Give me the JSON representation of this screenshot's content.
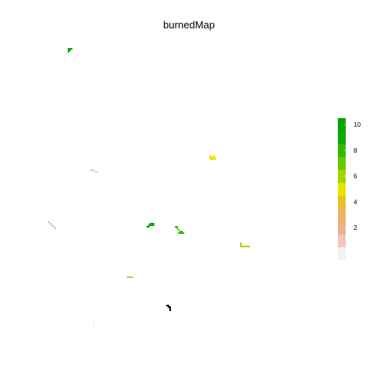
{
  "chart_data": {
    "type": "heatmap",
    "title": "burnedMap",
    "xlabel": "",
    "ylabel": "",
    "value_range": [
      0,
      11
    ],
    "legend": {
      "placement": "right",
      "ticks": [
        2,
        4,
        6,
        8,
        10
      ],
      "colors": [
        "#f2f2f2",
        "#efc7bb",
        "#ebb18b",
        "#e8b564",
        "#e4c12b",
        "#e6e600",
        "#a6d600",
        "#6ac600",
        "#33b800",
        "#12a800",
        "#00a600"
      ]
    },
    "patches": [
      {
        "value": 9,
        "cells": [
          [
            86,
            61
          ],
          [
            88,
            61
          ],
          [
            90,
            61
          ],
          [
            86,
            63
          ],
          [
            88,
            63
          ],
          [
            86,
            65
          ]
        ]
      },
      {
        "value": 1,
        "cells": [
          [
            114,
            215
          ],
          [
            116,
            215
          ],
          [
            118,
            215
          ],
          [
            120,
            217
          ],
          [
            122,
            217
          ]
        ]
      },
      {
        "value": 5,
        "cells": [
          [
            266,
            197
          ],
          [
            270,
            197
          ],
          [
            266,
            199
          ],
          [
            268,
            199
          ],
          [
            270,
            199
          ],
          [
            272,
            199
          ],
          [
            266,
            201
          ],
          [
            268,
            201
          ],
          [
            270,
            201
          ],
          [
            272,
            201
          ]
        ]
      },
      {
        "value": 2,
        "cells": [
          [
            61,
            281
          ],
          [
            63,
            283
          ],
          [
            65,
            285
          ],
          [
            67,
            287
          ],
          [
            69,
            289
          ]
        ]
      },
      {
        "value": 9,
        "cells": [
          [
            190,
            283
          ],
          [
            192,
            283
          ],
          [
            194,
            283
          ],
          [
            188,
            285
          ],
          [
            190,
            285
          ],
          [
            192,
            285
          ],
          [
            194,
            285
          ],
          [
            186,
            287
          ],
          [
            188,
            287
          ]
        ]
      },
      {
        "value": 8,
        "cells": [
          [
            222,
            287
          ],
          [
            224,
            287
          ],
          [
            224,
            289
          ],
          [
            226,
            291
          ],
          [
            228,
            293
          ],
          [
            230,
            293
          ],
          [
            226,
            295
          ],
          [
            228,
            295
          ],
          [
            230,
            295
          ],
          [
            232,
            295
          ]
        ]
      },
      {
        "value": 6,
        "cells": [
          [
            305,
            308
          ],
          [
            305,
            310
          ],
          [
            305,
            312
          ],
          [
            307,
            312
          ],
          [
            309,
            312
          ],
          [
            311,
            312
          ],
          [
            313,
            312
          ],
          [
            315,
            312
          ]
        ]
      },
      {
        "value": 4,
        "cells": [
          [
            161,
            351
          ],
          [
            163,
            351
          ],
          [
            165,
            351
          ],
          [
            167,
            351
          ]
        ]
      },
      {
        "value": 11,
        "cells": [
          [
            211,
            387
          ],
          [
            213,
            387
          ],
          [
            213,
            389
          ],
          [
            215,
            389
          ],
          [
            215,
            391
          ],
          [
            215,
            393
          ]
        ]
      },
      {
        "value": 0,
        "cells": [
          [
            118,
            409
          ],
          [
            118,
            411
          ],
          [
            118,
            413
          ]
        ]
      }
    ]
  }
}
